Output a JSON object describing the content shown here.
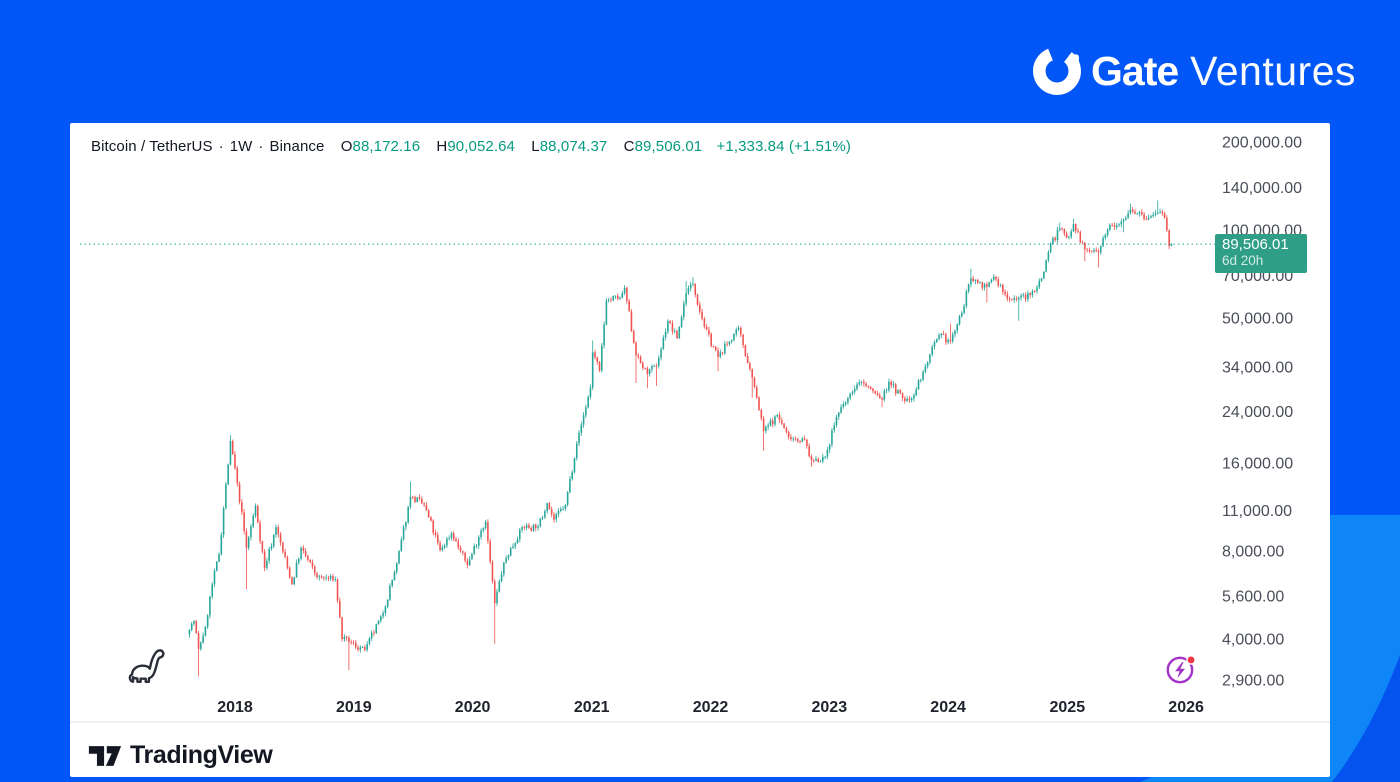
{
  "brand": {
    "gate": "Gate",
    "ventures": "Ventures"
  },
  "watermark": {
    "tradingview": "TradingView"
  },
  "chart_header": {
    "symbol": "Bitcoin / TetherUS",
    "dot": "·",
    "interval": "1W",
    "exchange": "Binance",
    "o_label": "O",
    "o_value": "88,172.16",
    "h_label": "H",
    "h_value": "90,052.64",
    "l_label": "L",
    "l_value": "88,074.37",
    "c_label": "C",
    "c_value": "89,506.01",
    "change": "+1,333.84 (+1.51%)"
  },
  "price_badge": {
    "price": "89,506.01",
    "countdown": "6d 20h"
  },
  "chart_data": {
    "type": "candlestick",
    "title": "Bitcoin / TetherUS · 1W · Binance",
    "scale": "log",
    "grid": "off",
    "colors": {
      "up": "#26a69a",
      "down": "#ef5350",
      "accent": "#089981",
      "badge": "#2f9e87",
      "axis_text": "#4a4e59",
      "year_text": "#20232d",
      "separator": "#e0e3eb"
    },
    "y_axis": {
      "ticks": [
        200000,
        140000,
        100000,
        70000,
        50000,
        34000,
        24000,
        16000,
        11000,
        8000,
        5600,
        4000,
        2900
      ],
      "labels": [
        "200,000.00",
        "140,000.00",
        "100,000.00",
        "70,000.00",
        "50,000.00",
        "34,000.00",
        "24,000.00",
        "16,000.00",
        "11,000.00",
        "8,000.00",
        "5,600.00",
        "4,000.00",
        "2,900.00"
      ]
    },
    "x_axis": {
      "years": [
        "2018",
        "2019",
        "2020",
        "2021",
        "2022",
        "2023",
        "2024",
        "2025",
        "2026"
      ]
    },
    "price_line": 89506.01,
    "start": "2017-08-14",
    "end": "2025-11-17",
    "last_candle": {
      "open": 88172.16,
      "high": 90052.64,
      "low": 88074.37,
      "close": 89506.01
    },
    "anchors": [
      [
        "2017-08-14",
        4300,
        null,
        null
      ],
      [
        "2017-08-28",
        4600,
        null,
        null
      ],
      [
        "2017-09-11",
        3700,
        null,
        2980
      ],
      [
        "2017-10-02",
        4400,
        null,
        null
      ],
      [
        "2017-10-23",
        6150,
        null,
        null
      ],
      [
        "2017-11-13",
        7800,
        null,
        null
      ],
      [
        "2017-11-27",
        11200,
        null,
        null
      ],
      [
        "2017-12-18",
        19000,
        19900,
        null
      ],
      [
        "2018-01-08",
        13600,
        null,
        null
      ],
      [
        "2018-02-05",
        8200,
        null,
        5920
      ],
      [
        "2018-03-05",
        11400,
        null,
        null
      ],
      [
        "2018-04-02",
        7000,
        null,
        null
      ],
      [
        "2018-05-07",
        9650,
        null,
        null
      ],
      [
        "2018-06-25",
        6150,
        null,
        null
      ],
      [
        "2018-07-23",
        8200,
        null,
        null
      ],
      [
        "2018-09-10",
        6500,
        null,
        null
      ],
      [
        "2018-11-05",
        6400,
        null,
        null
      ],
      [
        "2018-11-26",
        4000,
        null,
        null
      ],
      [
        "2018-12-17",
        3900,
        null,
        3130
      ],
      [
        "2019-02-04",
        3670,
        null,
        null
      ],
      [
        "2019-04-01",
        4900,
        null,
        null
      ],
      [
        "2019-05-13",
        7250,
        null,
        null
      ],
      [
        "2019-06-24",
        12250,
        13800,
        null
      ],
      [
        "2019-08-05",
        11500,
        null,
        null
      ],
      [
        "2019-09-23",
        8050,
        null,
        null
      ],
      [
        "2019-10-28",
        9200,
        null,
        null
      ],
      [
        "2019-12-16",
        7150,
        null,
        null
      ],
      [
        "2020-01-27",
        9400,
        null,
        null
      ],
      [
        "2020-02-10",
        10050,
        null,
        null
      ],
      [
        "2020-03-09",
        5300,
        null,
        3850
      ],
      [
        "2020-04-06",
        7300,
        null,
        null
      ],
      [
        "2020-06-01",
        9650,
        null,
        null
      ],
      [
        "2020-07-20",
        9700,
        null,
        null
      ],
      [
        "2020-08-17",
        11650,
        null,
        null
      ],
      [
        "2020-09-07",
        10250,
        null,
        null
      ],
      [
        "2020-10-12",
        11500,
        null,
        null
      ],
      [
        "2020-11-16",
        18650,
        null,
        null
      ],
      [
        "2020-12-28",
        28950,
        null,
        null
      ],
      [
        "2021-01-04",
        38200,
        41950,
        null
      ],
      [
        "2021-01-25",
        33100,
        null,
        null
      ],
      [
        "2021-02-15",
        57400,
        null,
        null
      ],
      [
        "2021-03-29",
        58750,
        null,
        null
      ],
      [
        "2021-04-12",
        63500,
        64850,
        null
      ],
      [
        "2021-05-17",
        37300,
        null,
        30000
      ],
      [
        "2021-06-21",
        32200,
        null,
        28800
      ],
      [
        "2021-07-19",
        34250,
        null,
        29300
      ],
      [
        "2021-08-23",
        48850,
        null,
        null
      ],
      [
        "2021-09-20",
        42700,
        null,
        null
      ],
      [
        "2021-10-18",
        60900,
        66950,
        null
      ],
      [
        "2021-11-08",
        65500,
        69000,
        null
      ],
      [
        "2021-12-13",
        46700,
        null,
        null
      ],
      [
        "2022-01-24",
        36850,
        null,
        32950
      ],
      [
        "2022-03-28",
        46300,
        null,
        null
      ],
      [
        "2022-05-09",
        31300,
        null,
        26700
      ],
      [
        "2022-06-13",
        20550,
        null,
        17600
      ],
      [
        "2022-07-25",
        23300,
        null,
        null
      ],
      [
        "2022-08-29",
        19600,
        null,
        null
      ],
      [
        "2022-10-17",
        19200,
        null,
        null
      ],
      [
        "2022-11-07",
        16300,
        null,
        15500
      ],
      [
        "2022-12-19",
        16800,
        null,
        null
      ],
      [
        "2023-01-23",
        23000,
        null,
        null
      ],
      [
        "2023-03-13",
        28000,
        null,
        null
      ],
      [
        "2023-04-10",
        30300,
        null,
        null
      ],
      [
        "2023-06-12",
        26300,
        null,
        24800
      ],
      [
        "2023-07-03",
        30300,
        null,
        null
      ],
      [
        "2023-08-21",
        26050,
        null,
        null
      ],
      [
        "2023-09-11",
        26550,
        null,
        null
      ],
      [
        "2023-10-23",
        34150,
        null,
        null
      ],
      [
        "2023-12-04",
        43750,
        null,
        null
      ],
      [
        "2024-01-08",
        41650,
        47900,
        null
      ],
      [
        "2024-02-12",
        52100,
        null,
        null
      ],
      [
        "2024-03-11",
        68400,
        73800,
        null
      ],
      [
        "2024-04-29",
        64000,
        null,
        56500
      ],
      [
        "2024-05-20",
        69250,
        null,
        null
      ],
      [
        "2024-07-01",
        58250,
        null,
        null
      ],
      [
        "2024-08-05",
        58700,
        null,
        49000
      ],
      [
        "2024-09-09",
        60000,
        null,
        null
      ],
      [
        "2024-10-14",
        68400,
        null,
        null
      ],
      [
        "2024-11-11",
        90000,
        null,
        null
      ],
      [
        "2024-12-09",
        101400,
        106100,
        null
      ],
      [
        "2024-12-30",
        94300,
        null,
        null
      ],
      [
        "2025-01-20",
        104800,
        109350,
        null
      ],
      [
        "2025-02-24",
        86000,
        null,
        78200
      ],
      [
        "2025-04-07",
        83700,
        null,
        74500
      ],
      [
        "2025-05-12",
        104100,
        null,
        null
      ],
      [
        "2025-06-23",
        108300,
        null,
        98300
      ],
      [
        "2025-07-14",
        117500,
        123250,
        null
      ],
      [
        "2025-08-18",
        113200,
        null,
        null
      ],
      [
        "2025-09-01",
        108800,
        null,
        null
      ],
      [
        "2025-10-06",
        114800,
        126200,
        null
      ],
      [
        "2025-10-27",
        110000,
        null,
        null
      ],
      [
        "2025-11-10",
        88172,
        null,
        86000
      ],
      [
        "2025-11-17",
        89506,
        null,
        null
      ]
    ]
  }
}
